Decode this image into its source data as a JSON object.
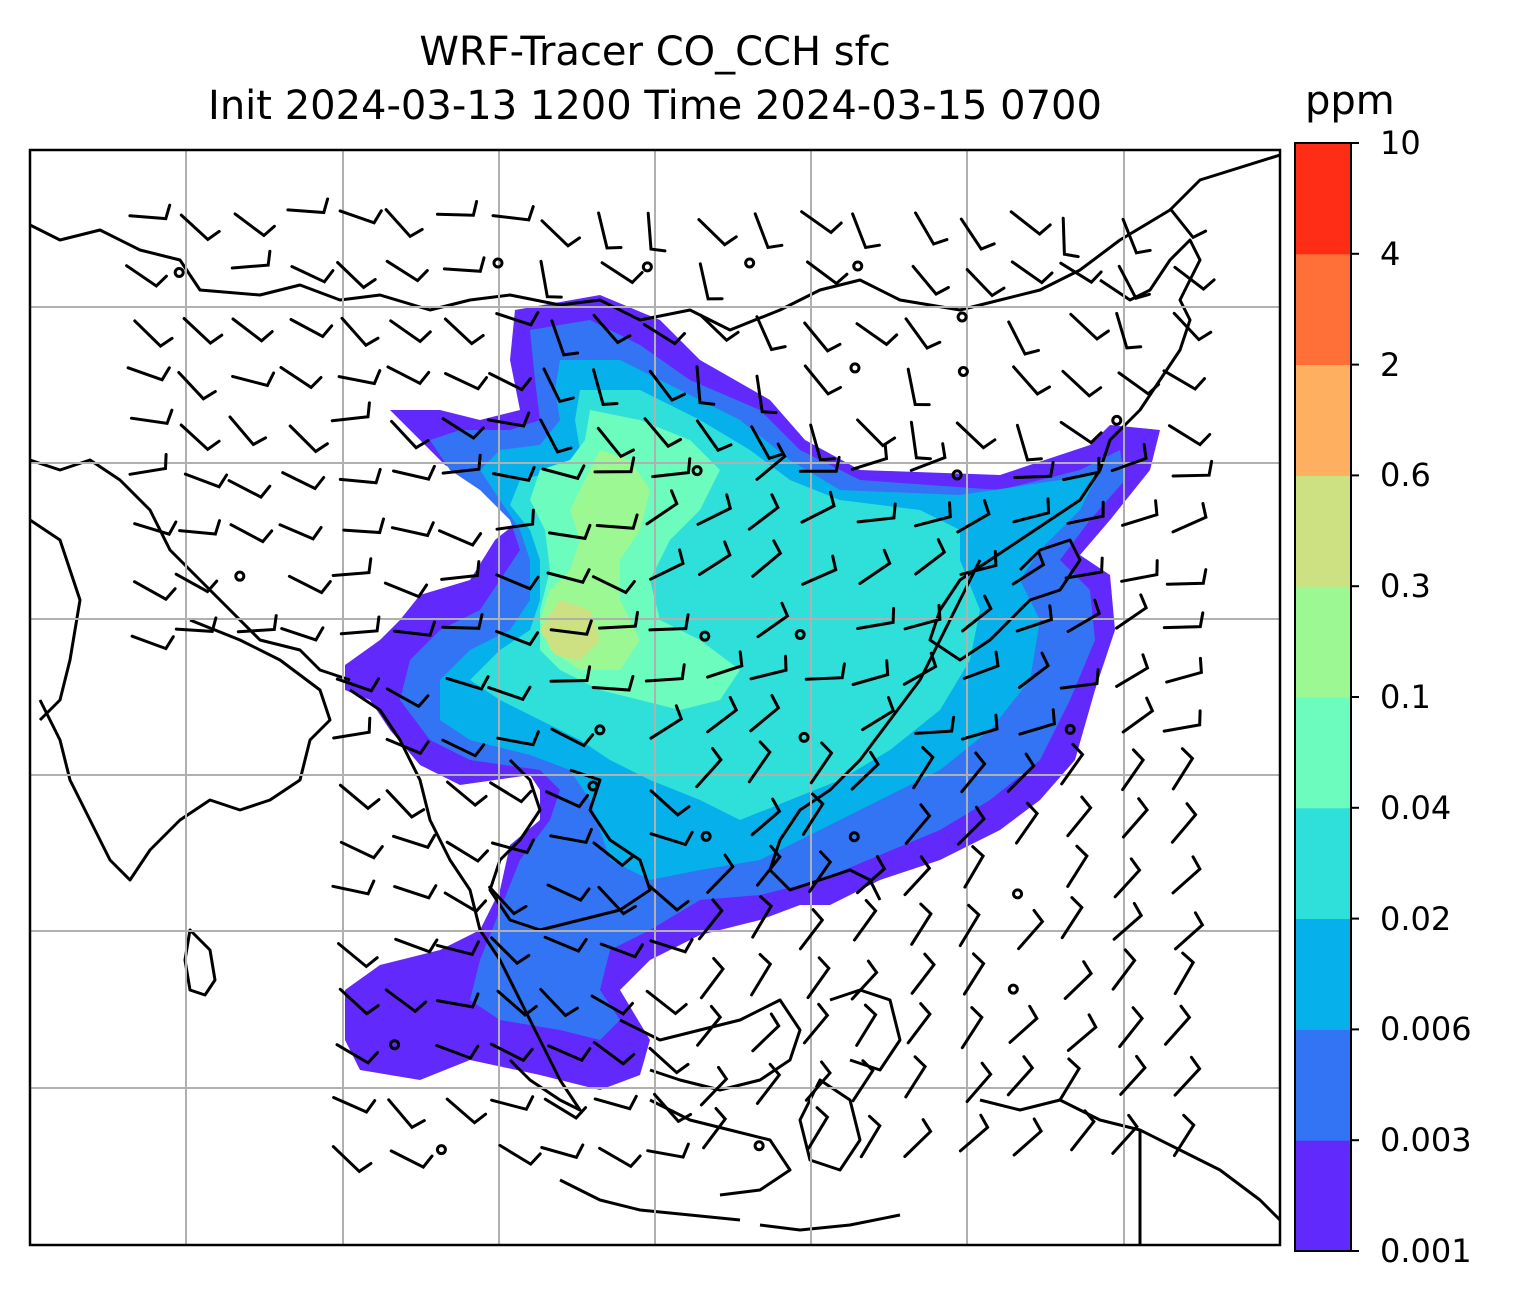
{
  "title": {
    "line1": "WRF-Tracer CO_CCH sfc",
    "line2": "Init 2024-03-13 1200 Time 2024-03-15 0700"
  },
  "colorbar": {
    "unit": "ppm",
    "levels": [
      "0.001",
      "0.003",
      "0.006",
      "0.02",
      "0.04",
      "0.1",
      "0.3",
      "0.6",
      "2",
      "4",
      "10"
    ],
    "colors": [
      "#6129fb",
      "#3374f4",
      "#06b0ea",
      "#2fdfd9",
      "#6cfcbd",
      "#9cf893",
      "#cde082",
      "#ffaf60",
      "#ff7039",
      "#ff2c16"
    ]
  },
  "map": {
    "gridlines": true,
    "coastline_color": "#000000",
    "grid_color": "#b0b0b0",
    "wind_barbs": true
  }
}
